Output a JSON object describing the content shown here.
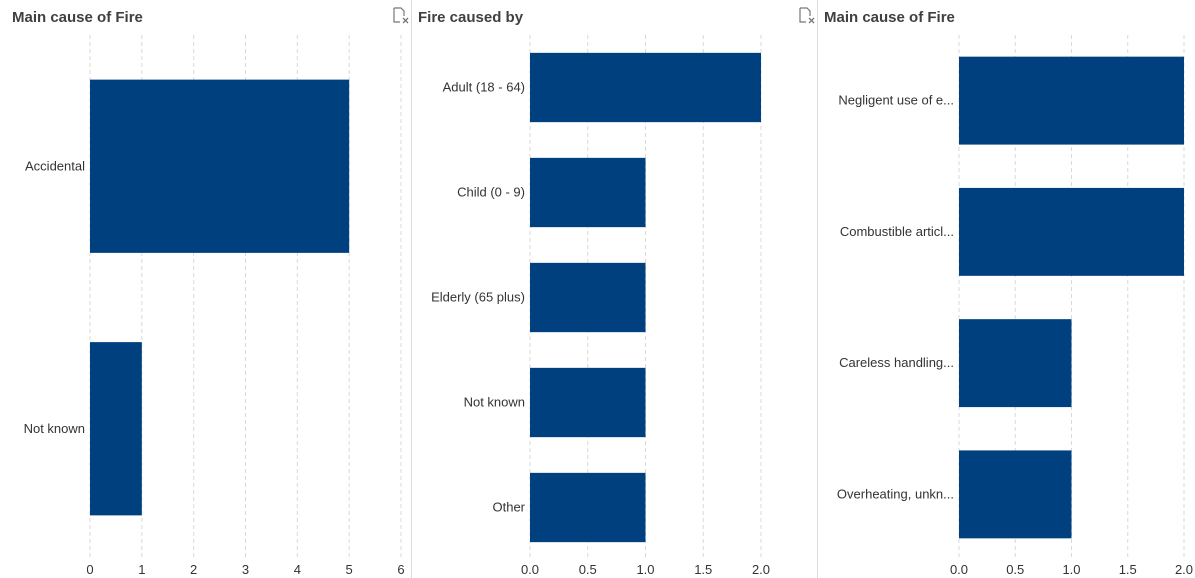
{
  "colors": {
    "bar": "#00407f",
    "grid": "#d9d9d9",
    "axis_text": "#333333",
    "title": "#404040"
  },
  "panels": [
    {
      "title": "Main cause of Fire",
      "clear_icon": "clear-filter-icon"
    },
    {
      "title": "Fire caused by",
      "clear_icon": "clear-filter-icon"
    },
    {
      "title": "Main cause of Fire"
    }
  ],
  "chart_data": [
    {
      "type": "bar",
      "orientation": "horizontal",
      "title": "Main cause of Fire",
      "categories": [
        "Accidental",
        "Not known"
      ],
      "values": [
        5,
        1
      ],
      "xlim": [
        0,
        6
      ],
      "xticks": [
        "0",
        "1",
        "2",
        "3",
        "4",
        "5",
        "6"
      ],
      "grid": true
    },
    {
      "type": "bar",
      "orientation": "horizontal",
      "title": "Fire caused by",
      "categories": [
        "Adult (18 - 64)",
        "Child (0 - 9)",
        "Elderly (65 plus)",
        "Not known",
        "Other"
      ],
      "values": [
        2,
        1,
        1,
        1,
        1
      ],
      "xlim": [
        0,
        2
      ],
      "xticks": [
        "0.0",
        "0.5",
        "1.0",
        "1.5",
        "2.0"
      ],
      "grid": true
    },
    {
      "type": "bar",
      "orientation": "horizontal",
      "title": "Main cause of Fire",
      "categories": [
        "Negligent use of e...",
        "Combustible articl...",
        "Careless handling...",
        "Overheating, unkn..."
      ],
      "values": [
        2,
        2,
        1,
        1
      ],
      "xlim": [
        0,
        2
      ],
      "xticks": [
        "0.0",
        "0.5",
        "1.0",
        "1.5",
        "2.0"
      ],
      "grid": true
    }
  ]
}
